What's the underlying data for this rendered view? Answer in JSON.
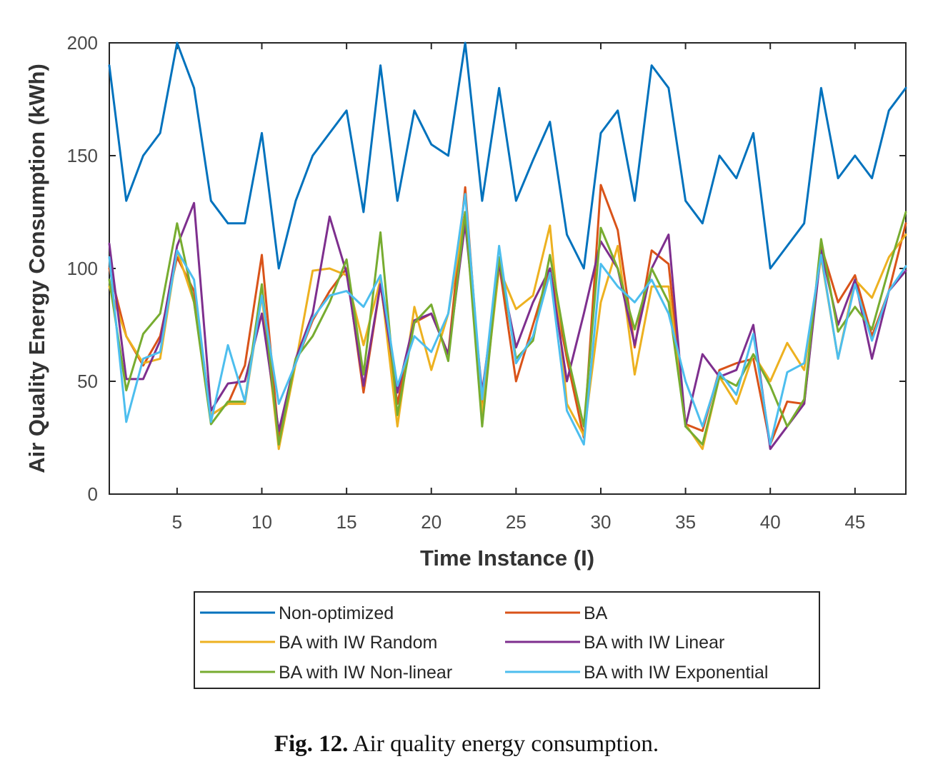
{
  "chart_data": {
    "type": "line",
    "title": "",
    "xlabel": "Time Instance (I)",
    "ylabel": "Air Quality Energy Consumption (kWh)",
    "xlim": [
      1,
      48
    ],
    "ylim": [
      0,
      200
    ],
    "xticks": [
      5,
      10,
      15,
      20,
      25,
      30,
      35,
      40,
      45
    ],
    "yticks": [
      0,
      50,
      100,
      150,
      200
    ],
    "grid": false,
    "legend_position": "bottom-outside",
    "x": [
      1,
      2,
      3,
      4,
      5,
      6,
      7,
      8,
      9,
      10,
      11,
      12,
      13,
      14,
      15,
      16,
      17,
      18,
      19,
      20,
      21,
      22,
      23,
      24,
      25,
      26,
      27,
      28,
      29,
      30,
      31,
      32,
      33,
      34,
      35,
      36,
      37,
      38,
      39,
      40,
      41,
      42,
      43,
      44,
      45,
      46,
      47,
      48
    ],
    "series": [
      {
        "name": "Non-optimized",
        "color": "#0072BD",
        "values": [
          190,
          130,
          150,
          160,
          200,
          180,
          130,
          120,
          120,
          160,
          100,
          130,
          150,
          160,
          170,
          125,
          190,
          130,
          170,
          155,
          150,
          200,
          130,
          180,
          130,
          148,
          165,
          115,
          100,
          160,
          170,
          130,
          190,
          180,
          130,
          120,
          150,
          140,
          160,
          100,
          110,
          120,
          180,
          140,
          150,
          140,
          170,
          180
        ]
      },
      {
        "name": "BA",
        "color": "#D95319",
        "values": [
          100,
          70,
          57,
          70,
          105,
          90,
          35,
          40,
          57,
          106,
          25,
          58,
          77,
          90,
          100,
          45,
          93,
          40,
          76,
          80,
          62,
          136,
          38,
          102,
          50,
          75,
          100,
          60,
          25,
          137,
          117,
          65,
          108,
          102,
          31,
          28,
          55,
          58,
          60,
          22,
          41,
          40,
          110,
          85,
          97,
          70,
          90,
          120
        ]
      },
      {
        "name": "BA with IW Random",
        "color": "#EDB120",
        "values": [
          92,
          70,
          58,
          60,
          108,
          85,
          35,
          40,
          40,
          88,
          20,
          58,
          99,
          100,
          97,
          66,
          95,
          30,
          83,
          55,
          80,
          125,
          35,
          100,
          82,
          88,
          119,
          40,
          26,
          85,
          110,
          53,
          92,
          92,
          31,
          20,
          52,
          40,
          62,
          50,
          67,
          55,
          105,
          60,
          95,
          87,
          105,
          115
        ]
      },
      {
        "name": "BA with IW Linear",
        "color": "#7E2F8E",
        "values": [
          111,
          51,
          51,
          68,
          110,
          129,
          37,
          49,
          50,
          80,
          28,
          60,
          80,
          123,
          98,
          48,
          93,
          45,
          77,
          80,
          62,
          120,
          45,
          102,
          65,
          85,
          100,
          50,
          80,
          112,
          100,
          66,
          100,
          115,
          30,
          62,
          52,
          55,
          75,
          20,
          30,
          40,
          108,
          75,
          95,
          60,
          90,
          99
        ]
      },
      {
        "name": "BA with IW Non-linear",
        "color": "#77AC30",
        "values": [
          95,
          46,
          71,
          80,
          120,
          85,
          31,
          41,
          41,
          93,
          22,
          60,
          70,
          85,
          104,
          53,
          116,
          35,
          76,
          84,
          59,
          125,
          30,
          105,
          60,
          68,
          106,
          63,
          30,
          118,
          100,
          73,
          100,
          85,
          30,
          22,
          52,
          48,
          62,
          48,
          30,
          42,
          113,
          72,
          83,
          73,
          100,
          125
        ]
      },
      {
        "name": "BA with IW Exponential",
        "color": "#4DBEEE",
        "values": [
          105,
          32,
          60,
          63,
          108,
          95,
          32,
          66,
          41,
          88,
          40,
          58,
          78,
          88,
          90,
          83,
          97,
          48,
          70,
          63,
          80,
          133,
          42,
          110,
          58,
          70,
          98,
          37,
          22,
          102,
          92,
          85,
          95,
          80,
          50,
          30,
          54,
          44,
          71,
          22,
          54,
          58,
          106,
          60,
          93,
          68,
          90,
          101
        ]
      }
    ],
    "caption_label": "Fig. 12.",
    "caption_text": "Air quality energy consumption."
  }
}
